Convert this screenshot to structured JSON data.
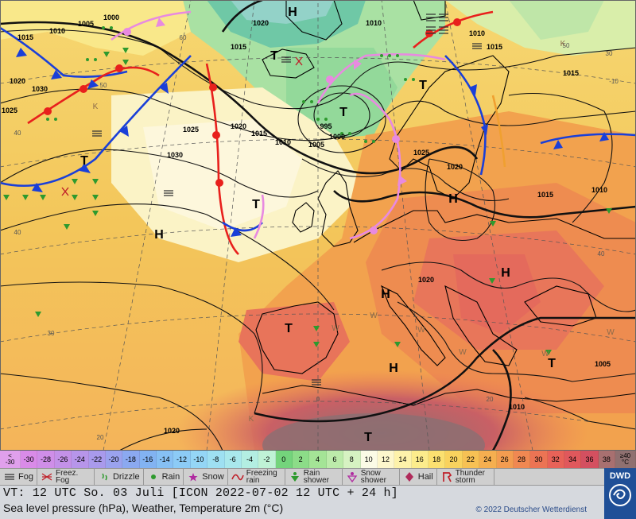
{
  "map": {
    "pressure_centers": [
      {
        "label": "H",
        "kind": "high"
      },
      {
        "label": "H",
        "kind": "high"
      },
      {
        "label": "H",
        "kind": "high"
      },
      {
        "label": "H",
        "kind": "high"
      },
      {
        "label": "H",
        "kind": "high"
      },
      {
        "label": "H",
        "kind": "high"
      },
      {
        "label": "T",
        "kind": "low"
      },
      {
        "label": "T",
        "kind": "low"
      },
      {
        "label": "T",
        "kind": "low"
      },
      {
        "label": "T",
        "kind": "low"
      },
      {
        "label": "T",
        "kind": "low"
      },
      {
        "label": "T",
        "kind": "low"
      },
      {
        "label": "T",
        "kind": "low"
      },
      {
        "label": "T",
        "kind": "low"
      }
    ],
    "isobar_labels": [
      "1000",
      "1005",
      "1010",
      "1015",
      "1020",
      "1025",
      "1030",
      "995",
      "1000",
      "1005",
      "1010",
      "1015",
      "1020",
      "1020",
      "1015",
      "1025",
      "1030",
      "1025",
      "1020",
      "1015",
      "1010",
      "1010",
      "1015",
      "1005",
      "1010",
      "1020",
      "1010",
      "1015",
      "1020"
    ],
    "grid_labels": [
      "60",
      "50",
      "40",
      "50",
      "40",
      "30",
      "20",
      "0",
      "40",
      "30",
      "20",
      "-10"
    ],
    "warm_region_marks": [
      "W",
      "W",
      "W",
      "W",
      "W",
      "W",
      "K",
      "K",
      "K"
    ]
  },
  "temperature_scale": {
    "unit": "°C",
    "low_edge": {
      "line1": "<",
      "line2": "-30"
    },
    "high_edge": {
      "line1": "≥40",
      "line2": "°C"
    },
    "steps": [
      {
        "value": "-30",
        "color": "#d98be8"
      },
      {
        "value": "-28",
        "color": "#cf8ee8"
      },
      {
        "value": "-26",
        "color": "#c391e8"
      },
      {
        "value": "-24",
        "color": "#b795ea"
      },
      {
        "value": "-22",
        "color": "#a99aec"
      },
      {
        "value": "-20",
        "color": "#9aa2ee"
      },
      {
        "value": "-18",
        "color": "#8ba9f0"
      },
      {
        "value": "-16",
        "color": "#82b3f2"
      },
      {
        "value": "-14",
        "color": "#86c0f4"
      },
      {
        "value": "-12",
        "color": "#8ccbf6"
      },
      {
        "value": "-10",
        "color": "#94d6f6"
      },
      {
        "value": "-8",
        "color": "#9ee0f2"
      },
      {
        "value": "-6",
        "color": "#a9e8ec"
      },
      {
        "value": "-4",
        "color": "#b3eee2"
      },
      {
        "value": "-2",
        "color": "#bff2d6"
      },
      {
        "value": "0",
        "color": "#74d47c"
      },
      {
        "value": "2",
        "color": "#8cdc88"
      },
      {
        "value": "4",
        "color": "#a4e496"
      },
      {
        "value": "6",
        "color": "#bcebaa"
      },
      {
        "value": "8",
        "color": "#d6f2c2"
      },
      {
        "value": "10",
        "color": "#fbfbe6"
      },
      {
        "value": "12",
        "color": "#fdf7cc"
      },
      {
        "value": "14",
        "color": "#fdf2aa"
      },
      {
        "value": "16",
        "color": "#fcec8c"
      },
      {
        "value": "18",
        "color": "#fbe070"
      },
      {
        "value": "20",
        "color": "#f9d25e"
      },
      {
        "value": "22",
        "color": "#f7c154"
      },
      {
        "value": "24",
        "color": "#f5af50"
      },
      {
        "value": "26",
        "color": "#f39c50"
      },
      {
        "value": "28",
        "color": "#f08852"
      },
      {
        "value": "30",
        "color": "#ec7454"
      },
      {
        "value": "32",
        "color": "#e86258"
      },
      {
        "value": "34",
        "color": "#e0585c"
      },
      {
        "value": "36",
        "color": "#d45060"
      },
      {
        "value": "38",
        "color": "#a87070"
      }
    ]
  },
  "legend": {
    "items": [
      {
        "name": "fog",
        "label": "Fog",
        "two_line": false,
        "icon": "fog-icon"
      },
      {
        "name": "freezing-fog",
        "label": "Freez. Fog",
        "two_line": true,
        "icon": "freezing-fog-icon"
      },
      {
        "name": "drizzle",
        "label": "Drizzle",
        "two_line": false,
        "icon": "drizzle-icon"
      },
      {
        "name": "rain",
        "label": "Rain",
        "two_line": false,
        "icon": "rain-icon"
      },
      {
        "name": "snow",
        "label": "Snow",
        "two_line": false,
        "icon": "snow-icon"
      },
      {
        "name": "freezing-rain",
        "label": "Freezing rain",
        "two_line": true,
        "icon": "freezing-rain-icon"
      },
      {
        "name": "rain-shower",
        "label": "Rain shower",
        "two_line": true,
        "icon": "rain-shower-icon"
      },
      {
        "name": "snow-shower",
        "label": "Snow shower",
        "two_line": true,
        "icon": "snow-shower-icon"
      },
      {
        "name": "hail",
        "label": "Hail",
        "two_line": false,
        "icon": "hail-icon"
      },
      {
        "name": "thunderstorm",
        "label": "Thunder storm",
        "two_line": true,
        "icon": "thunderstorm-icon"
      }
    ]
  },
  "footer": {
    "valid_time": "VT: 12 UTC So.  03 Juli [ICON 2022-07-02  12 UTC + 24 h]",
    "subtitle": "Sea level pressure (hPa), Weather, Temperature 2m (°C)",
    "copyright": "© 2022 Deutscher Wetterdienst"
  },
  "logo": {
    "text": "DWD"
  },
  "colors": {
    "warm_front": "#e8201c",
    "cold_front": "#1a3fd8",
    "occluded_front": "#e88ae0",
    "trough": "#f0a030",
    "isobar": "#111111",
    "land_border": "#000000",
    "legend_bg": "#cfcfcf",
    "footer_bg": "#d6d9de",
    "logo_bg": "#1f4f97"
  }
}
